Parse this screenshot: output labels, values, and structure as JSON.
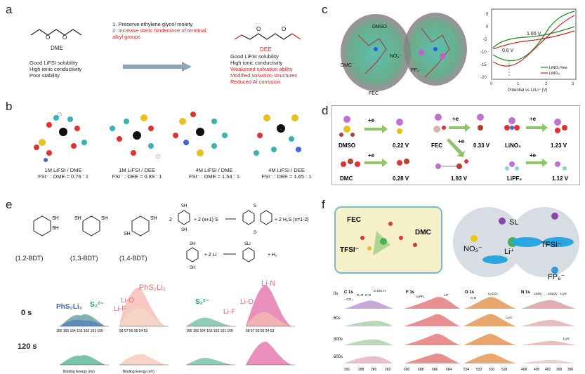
{
  "panels": {
    "a": {
      "letter": "a",
      "dme_name": "DME",
      "dme_props": [
        "Good LiFSI solubility",
        "High ionic conductivity",
        "Poor stability"
      ],
      "steps": [
        "Preserve ethylene glycol moiety",
        "Increase steric hinderance of terminal alkyl groups"
      ],
      "step_nums": [
        "1.",
        "2."
      ],
      "dee_name": "DEE",
      "dee_props_black": [
        "Good LiFSI solubility",
        "High ionic conductivity"
      ],
      "dee_props_red": [
        "Weakened solvation ability",
        "Modified solvation structures",
        "Reduced Al corrosion"
      ],
      "colors": {
        "red": "#d9231f",
        "arrow": "#8fa4b8"
      }
    },
    "b": {
      "letter": "b",
      "cases": [
        {
          "title": "1M LiFSI / DME",
          "ratio": "FSI⁻ : DME = 0.76 : 1"
        },
        {
          "title": "1M LiFSI / DEE",
          "ratio": "FSI⁻ : DEE = 0.89 : 1"
        },
        {
          "title": "4M LiFSI / DME",
          "ratio": "FSI⁻ : DME = 1.54 : 1"
        },
        {
          "title": "4M LiFSI / DEE",
          "ratio": "FSI⁻ : DEE = 1.65 : 1"
        }
      ]
    },
    "c": {
      "letter": "c",
      "labels": [
        "DMSO",
        "DMC",
        "NO₃⁻",
        "FEC",
        "PF₆⁻"
      ],
      "plot": {
        "xlabel": "Potential vs Li/Li⁺ (V)",
        "xticks": [
          "0",
          "1",
          "2",
          "3"
        ],
        "yticks": [
          "5",
          "0",
          "-5",
          "-10",
          "-15",
          "-20"
        ],
        "annot1": "1.65 V",
        "annot2": "0.6 V",
        "legend": [
          "LiNO₃ free",
          "LiNO₃"
        ],
        "colors": {
          "free": "#1f8a1f",
          "lino3": "#d02020"
        }
      }
    },
    "d": {
      "letter": "d",
      "rxn_label": "+e",
      "species": [
        {
          "name": "DMSO",
          "v": "0.22 V"
        },
        {
          "name": "FEC",
          "v": "0.33 V"
        },
        {
          "name": "LiNO₃",
          "v": "1.23 V"
        },
        {
          "name": "DMC",
          "v": "0.28 V"
        },
        {
          "name": "",
          "v": "1.93 V"
        },
        {
          "name": "LiPF₆",
          "v": "1.12 V"
        }
      ]
    },
    "e": {
      "letter": "e",
      "isomers": [
        "(1,2-BDT)",
        "(1,3-BDT)",
        "(1,4-BDT)"
      ],
      "sh": "SH",
      "sli": "SLi",
      "rxn1": {
        "lhs1": "2",
        "lhs2": "+ 2 (x+1) S",
        "rhs": "+ 2 H₂S  (x=1-2)",
        "sx": "S",
        "x": "x"
      },
      "rxn2": {
        "lhs": "+ 2 Li",
        "rhs": "+  H₂"
      },
      "times": [
        "0 s",
        "120 s"
      ],
      "xps": {
        "left_labels": [
          "PhS₂Li₂",
          "S₂²⁻",
          "Li-F",
          "Li-O",
          "PhS₂Li₂"
        ],
        "right_labels": [
          "S₂²⁻",
          "Li-F",
          "Li-O",
          "Li-N"
        ],
        "s_ticks": "166 165 164 163 162 161 160",
        "li_ticks": "58 57 56 55 54 53",
        "xlabel": "Binding Energy (eV)"
      }
    },
    "f": {
      "letter": "f",
      "mol_labels": [
        "FEC",
        "TFSI⁻",
        "DMC"
      ],
      "ions": {
        "sl": "SL",
        "no3": "NO₃⁻",
        "li": "Li⁺",
        "tfsi": "TFSI⁻",
        "fp6": "FP₆⁻"
      },
      "xps_titles": [
        "C 1s",
        "F 1s",
        "O 1s",
        "N 1s"
      ],
      "c_labels": [
        "-CO₃",
        "C=O",
        "C-O",
        "C-C/C-H"
      ],
      "f_labels": [
        "LiₓPFᵧ",
        "LiF"
      ],
      "o_labels": [
        "C-O",
        "Li₂CO₃",
        "Li₂O"
      ],
      "n_labels": [
        "LiNO₃",
        "LiNₓOᵧ",
        "Li₃N",
        "Li₃N"
      ],
      "times": [
        "0s",
        "60s",
        "300s",
        "600s"
      ],
      "ticks": {
        "c": [
          "291",
          "288",
          "285",
          "282"
        ],
        "f": [
          "690",
          "688",
          "686",
          "684"
        ],
        "o": [
          "534",
          "532",
          "530",
          "528"
        ],
        "n": [
          "408",
          "405",
          "402",
          "399",
          "396"
        ]
      }
    }
  }
}
